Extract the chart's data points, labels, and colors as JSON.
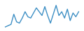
{
  "values": [
    3.5,
    4.0,
    4.5,
    8.5,
    5.5,
    5.0,
    7.0,
    9.5,
    7.5,
    7.0,
    9.0,
    11.0,
    9.5,
    8.0,
    11.5,
    8.0,
    5.0,
    8.5,
    12.0,
    8.0,
    9.5,
    7.0,
    10.5,
    6.0,
    9.0,
    7.5,
    9.5
  ],
  "line_color": "#3d8fc4",
  "line_width": 1.0,
  "background_color": "#ffffff",
  "ylim": [
    2.5,
    13.5
  ]
}
